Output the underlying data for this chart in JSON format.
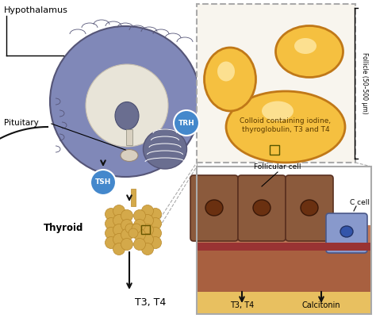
{
  "bg_color": "#ffffff",
  "brain_color": "#8088b8",
  "brain_outline": "#555577",
  "brain_inner_color": "#e8e4d8",
  "brain_stem_color": "#9095bb",
  "cerebellum_color": "#707090",
  "thyroid_color": "#d4a94a",
  "thyroid_outline": "#b8882a",
  "follicle_color": "#f5c040",
  "follicle_outline": "#c07818",
  "colloid_text": "Colloid containing iodine,\nthyroglobulin, T3 and T4",
  "follicle_label": "Follicle (50–500 μm)",
  "follicular_cell_color": "#8b5a3c",
  "follicular_cell_outline": "#5a3020",
  "nucleus_color": "#6a3010",
  "c_cell_color": "#8899cc",
  "c_cell_nucleus": "#3355aa",
  "cell_bg_upper": "#c07858",
  "cell_bg_lower": "#a86040",
  "bottom_strip_color": "#e8c060",
  "red_strip_color": "#993333",
  "label_hypothalamus": "Hypothalamus",
  "label_pituitary": "Pituitary",
  "label_trh": "TRH",
  "label_tsh": "TSH",
  "label_thyroid": "Thyroid",
  "label_t3t4": "T3, T4",
  "label_follicular_cell": "Follicular cell",
  "label_c_cell": "C cell",
  "label_t3t4_bottom": "T3, T4",
  "label_calcitonin": "Calcitonin",
  "arrow_color": "#111111",
  "trh_bubble_color": "#4488cc",
  "tsh_bubble_color": "#4488cc",
  "box_outline": "#aaaaaa",
  "dashed_line_color": "#aaaaaa",
  "panel_bg": "#f0eeea",
  "cell_panel_bg": "#c8d4e0"
}
